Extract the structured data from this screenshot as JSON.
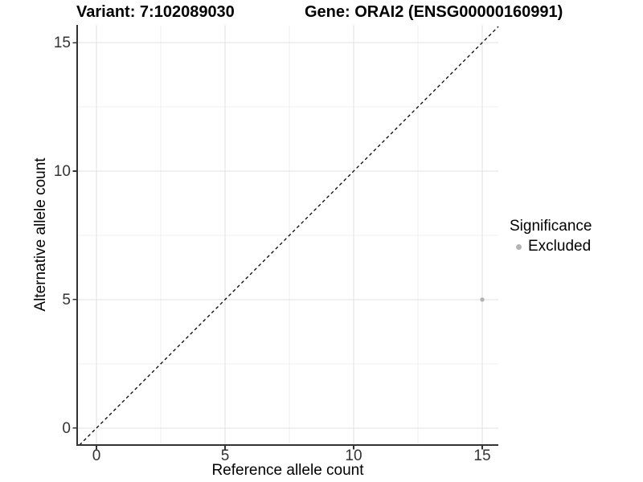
{
  "chart_data": {
    "type": "scatter",
    "title_left": "Variant: 7:102089030",
    "title_right": "Gene: ORAI2 (ENSG00000160991)",
    "xlabel": "Reference allele count",
    "ylabel": "Alternative allele count",
    "xlim": [
      -0.75,
      15.625
    ],
    "ylim": [
      -0.66,
      15.69
    ],
    "x_ticks": [
      0,
      5,
      10,
      15
    ],
    "y_ticks": [
      0,
      5,
      10,
      15
    ],
    "x_minor_ticks": [
      2.5,
      7.5,
      12.5
    ],
    "y_minor_ticks": [
      2.5,
      7.5,
      12.5
    ],
    "grid": "major and minor gridlines, light gray on white panel",
    "reference_line": {
      "type": "identity y=x",
      "style": "dashed",
      "color": "#000000"
    },
    "series": [
      {
        "name": "Excluded",
        "color": "#b3b3b3",
        "points": [
          {
            "x": 15,
            "y": 5
          }
        ]
      }
    ],
    "legend": {
      "title": "Significance",
      "position": "right",
      "items": [
        {
          "label": "Excluded",
          "color": "#b3b3b3"
        }
      ]
    },
    "colors": {
      "grid_major": "#e2e2e2",
      "grid_minor": "#efefef",
      "axis_line": "#333333",
      "tick_text": "#333333",
      "title_text": "#000000",
      "background": "#ffffff"
    }
  }
}
